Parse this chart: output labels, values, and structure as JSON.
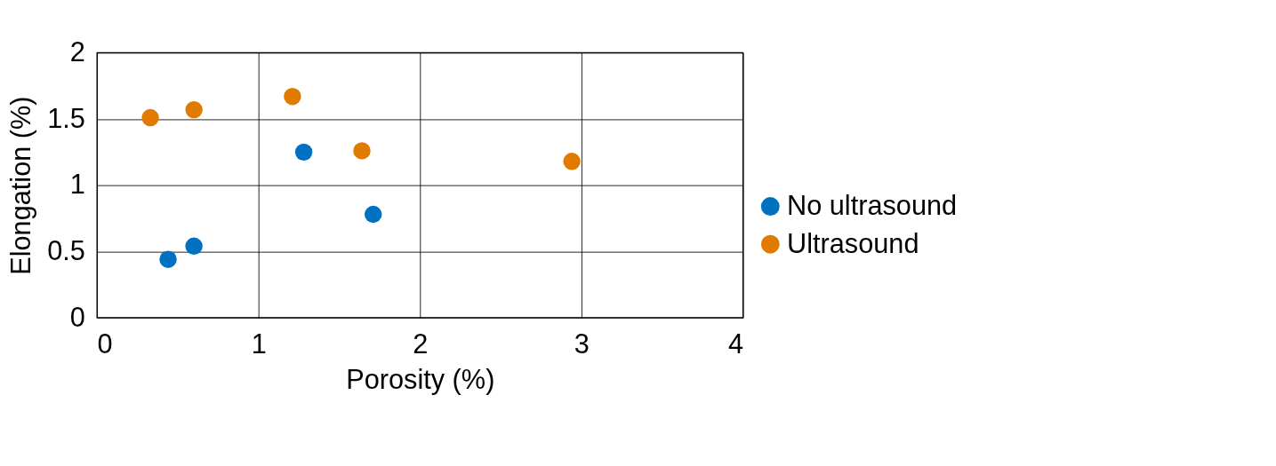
{
  "chart_data": {
    "type": "scatter",
    "xlabel": "Porosity (%)",
    "ylabel": "Elongation (%)",
    "xlim": [
      0,
      4
    ],
    "xticks": [
      0,
      1,
      2,
      3,
      4
    ],
    "ylim": [
      0,
      2
    ],
    "yticks": [
      0,
      0.5,
      1,
      1.5,
      2
    ],
    "grid": true,
    "legend": "right",
    "marker": "circle",
    "series": [
      {
        "name": "No ultrasound",
        "color": "#0070c0",
        "x": [
          0.44,
          0.6,
          1.28,
          1.71
        ],
        "values": [
          0.44,
          0.54,
          1.25,
          0.78
        ]
      },
      {
        "name": "Ultrasound",
        "color": "#e07b00",
        "x": [
          0.33,
          0.6,
          1.21,
          1.64,
          2.94
        ],
        "values": [
          1.51,
          1.57,
          1.67,
          1.26,
          1.18
        ]
      }
    ]
  }
}
